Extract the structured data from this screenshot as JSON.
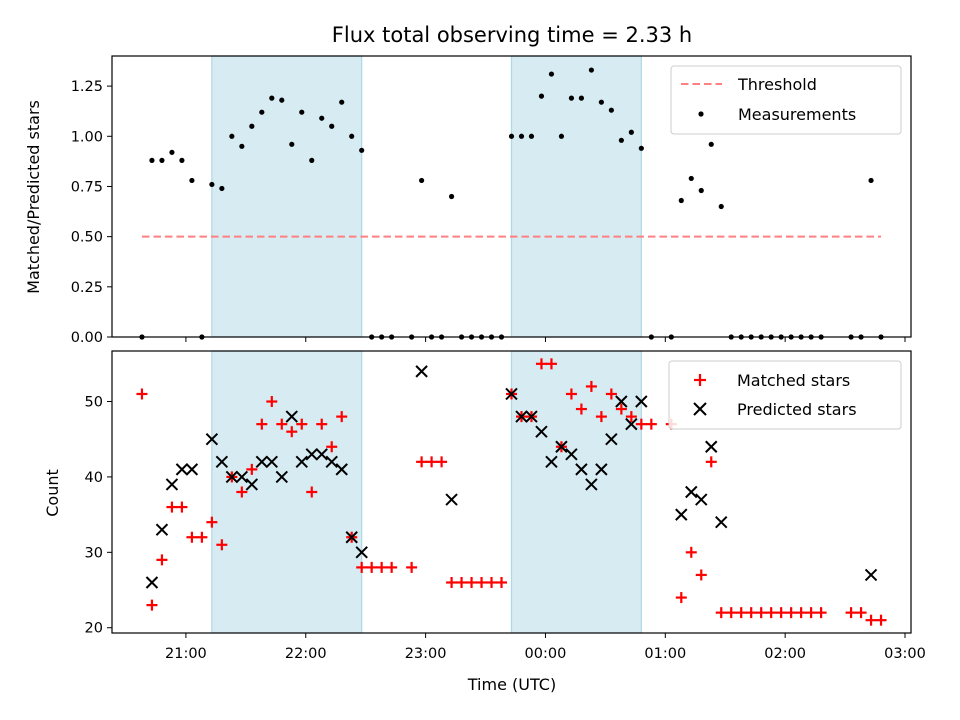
{
  "chart_data": [
    {
      "type": "scatter",
      "title": "Flux total observing time = 2.33 h",
      "ylabel": "Matched/Predicted stars",
      "xlabel": "",
      "xlim": [
        "20:23",
        "03:03"
      ],
      "ylim": [
        0,
        1.4
      ],
      "yticks": [
        "0.00",
        "0.25",
        "0.50",
        "0.75",
        "1.00",
        "1.25"
      ],
      "shaded_intervals": [
        [
          "21:13",
          "22:28"
        ],
        [
          "23:43",
          "00:48"
        ]
      ],
      "shade_color": "#add8e6",
      "threshold": {
        "name": "Threshold",
        "value": 0.5,
        "x_range": [
          "20:38",
          "02:48"
        ],
        "color": "#ff8080",
        "style": "dashed"
      },
      "legend_location": "upper right",
      "series": [
        {
          "name": "Measurements",
          "color": "#000000",
          "marker": "dot",
          "points": [
            [
              "20:38",
              0.0
            ],
            [
              "20:43",
              0.88
            ],
            [
              "20:48",
              0.88
            ],
            [
              "20:53",
              0.92
            ],
            [
              "20:58",
              0.88
            ],
            [
              "21:03",
              0.78
            ],
            [
              "21:08",
              0.0
            ],
            [
              "21:13",
              0.76
            ],
            [
              "21:18",
              0.74
            ],
            [
              "21:23",
              1.0
            ],
            [
              "21:28",
              0.95
            ],
            [
              "21:33",
              1.05
            ],
            [
              "21:38",
              1.12
            ],
            [
              "21:43",
              1.19
            ],
            [
              "21:48",
              1.18
            ],
            [
              "21:53",
              0.96
            ],
            [
              "21:58",
              1.12
            ],
            [
              "22:03",
              0.88
            ],
            [
              "22:08",
              1.09
            ],
            [
              "22:13",
              1.05
            ],
            [
              "22:18",
              1.17
            ],
            [
              "22:23",
              1.0
            ],
            [
              "22:28",
              0.93
            ],
            [
              "22:33",
              0.0
            ],
            [
              "22:38",
              0.0
            ],
            [
              "22:43",
              0.0
            ],
            [
              "22:53",
              0.0
            ],
            [
              "22:58",
              0.78
            ],
            [
              "23:03",
              0.0
            ],
            [
              "23:08",
              0.0
            ],
            [
              "23:13",
              0.7
            ],
            [
              "23:18",
              0.0
            ],
            [
              "23:23",
              0.0
            ],
            [
              "23:28",
              0.0
            ],
            [
              "23:33",
              0.0
            ],
            [
              "23:38",
              0.0
            ],
            [
              "23:43",
              1.0
            ],
            [
              "23:48",
              1.0
            ],
            [
              "23:53",
              1.0
            ],
            [
              "23:58",
              1.2
            ],
            [
              "00:03",
              1.31
            ],
            [
              "00:08",
              1.0
            ],
            [
              "00:13",
              1.19
            ],
            [
              "00:18",
              1.19
            ],
            [
              "00:23",
              1.33
            ],
            [
              "00:28",
              1.17
            ],
            [
              "00:33",
              1.13
            ],
            [
              "00:38",
              0.98
            ],
            [
              "00:43",
              1.02
            ],
            [
              "00:48",
              0.94
            ],
            [
              "00:53",
              0.0
            ],
            [
              "01:03",
              0.0
            ],
            [
              "01:08",
              0.68
            ],
            [
              "01:13",
              0.79
            ],
            [
              "01:18",
              0.73
            ],
            [
              "01:23",
              0.96
            ],
            [
              "01:28",
              0.65
            ],
            [
              "01:33",
              0.0
            ],
            [
              "01:38",
              0.0
            ],
            [
              "01:43",
              0.0
            ],
            [
              "01:48",
              0.0
            ],
            [
              "01:53",
              0.0
            ],
            [
              "01:58",
              0.0
            ],
            [
              "02:03",
              0.0
            ],
            [
              "02:08",
              0.0
            ],
            [
              "02:13",
              0.0
            ],
            [
              "02:18",
              0.0
            ],
            [
              "02:33",
              0.0
            ],
            [
              "02:38",
              0.0
            ],
            [
              "02:43",
              0.78
            ],
            [
              "02:48",
              0.0
            ]
          ]
        }
      ]
    },
    {
      "type": "scatter",
      "title": "",
      "xlabel": "Time (UTC)",
      "ylabel": "Count",
      "xlim": [
        "20:23",
        "03:03"
      ],
      "ylim": [
        19.3,
        56.7
      ],
      "xticks": [
        "21:00",
        "22:00",
        "23:00",
        "00:00",
        "01:00",
        "02:00",
        "03:00"
      ],
      "yticks": [
        "20",
        "30",
        "40",
        "50"
      ],
      "shaded_intervals": [
        [
          "21:13",
          "22:28"
        ],
        [
          "23:43",
          "00:48"
        ]
      ],
      "shade_color": "#add8e6",
      "legend_location": "upper right",
      "series": [
        {
          "name": "Matched stars",
          "color": "#ff0000",
          "marker": "plus",
          "points": [
            [
              "20:38",
              51
            ],
            [
              "20:43",
              23
            ],
            [
              "20:48",
              29
            ],
            [
              "20:53",
              36
            ],
            [
              "20:58",
              36
            ],
            [
              "21:03",
              32
            ],
            [
              "21:08",
              32
            ],
            [
              "21:13",
              34
            ],
            [
              "21:18",
              31
            ],
            [
              "21:23",
              40
            ],
            [
              "21:28",
              38
            ],
            [
              "21:33",
              41
            ],
            [
              "21:38",
              47
            ],
            [
              "21:43",
              50
            ],
            [
              "21:48",
              47
            ],
            [
              "21:53",
              46
            ],
            [
              "21:58",
              47
            ],
            [
              "22:03",
              38
            ],
            [
              "22:08",
              47
            ],
            [
              "22:13",
              44
            ],
            [
              "22:18",
              48
            ],
            [
              "22:23",
              32
            ],
            [
              "22:28",
              28
            ],
            [
              "22:33",
              28
            ],
            [
              "22:38",
              28
            ],
            [
              "22:43",
              28
            ],
            [
              "22:53",
              28
            ],
            [
              "22:58",
              42
            ],
            [
              "23:03",
              42
            ],
            [
              "23:08",
              42
            ],
            [
              "23:13",
              26
            ],
            [
              "23:18",
              26
            ],
            [
              "23:23",
              26
            ],
            [
              "23:28",
              26
            ],
            [
              "23:33",
              26
            ],
            [
              "23:38",
              26
            ],
            [
              "23:43",
              51
            ],
            [
              "23:48",
              48
            ],
            [
              "23:53",
              48
            ],
            [
              "23:58",
              55
            ],
            [
              "00:03",
              55
            ],
            [
              "00:08",
              44
            ],
            [
              "00:13",
              51
            ],
            [
              "00:18",
              49
            ],
            [
              "00:23",
              52
            ],
            [
              "00:28",
              48
            ],
            [
              "00:33",
              51
            ],
            [
              "00:38",
              49
            ],
            [
              "00:43",
              48
            ],
            [
              "00:48",
              47
            ],
            [
              "00:53",
              47
            ],
            [
              "01:03",
              47
            ],
            [
              "01:08",
              24
            ],
            [
              "01:13",
              30
            ],
            [
              "01:18",
              27
            ],
            [
              "01:23",
              42
            ],
            [
              "01:28",
              22
            ],
            [
              "01:33",
              22
            ],
            [
              "01:38",
              22
            ],
            [
              "01:43",
              22
            ],
            [
              "01:48",
              22
            ],
            [
              "01:53",
              22
            ],
            [
              "01:58",
              22
            ],
            [
              "02:03",
              22
            ],
            [
              "02:08",
              22
            ],
            [
              "02:13",
              22
            ],
            [
              "02:18",
              22
            ],
            [
              "02:33",
              22
            ],
            [
              "02:38",
              22
            ],
            [
              "02:43",
              21
            ],
            [
              "02:48",
              21
            ]
          ]
        },
        {
          "name": "Predicted stars",
          "color": "#000000",
          "marker": "x",
          "points": [
            [
              "20:43",
              26
            ],
            [
              "20:48",
              33
            ],
            [
              "20:53",
              39
            ],
            [
              "20:58",
              41
            ],
            [
              "21:03",
              41
            ],
            [
              "21:13",
              45
            ],
            [
              "21:18",
              42
            ],
            [
              "21:23",
              40
            ],
            [
              "21:28",
              40
            ],
            [
              "21:33",
              39
            ],
            [
              "21:38",
              42
            ],
            [
              "21:43",
              42
            ],
            [
              "21:48",
              40
            ],
            [
              "21:53",
              48
            ],
            [
              "21:58",
              42
            ],
            [
              "22:03",
              43
            ],
            [
              "22:08",
              43
            ],
            [
              "22:13",
              42
            ],
            [
              "22:18",
              41
            ],
            [
              "22:23",
              32
            ],
            [
              "22:28",
              30
            ],
            [
              "22:58",
              54
            ],
            [
              "23:13",
              37
            ],
            [
              "23:43",
              51
            ],
            [
              "23:48",
              48
            ],
            [
              "23:53",
              48
            ],
            [
              "23:58",
              46
            ],
            [
              "00:03",
              42
            ],
            [
              "00:08",
              44
            ],
            [
              "00:13",
              43
            ],
            [
              "00:18",
              41
            ],
            [
              "00:23",
              39
            ],
            [
              "00:28",
              41
            ],
            [
              "00:33",
              45
            ],
            [
              "00:38",
              50
            ],
            [
              "00:43",
              47
            ],
            [
              "00:48",
              50
            ],
            [
              "01:08",
              35
            ],
            [
              "01:13",
              38
            ],
            [
              "01:18",
              37
            ],
            [
              "01:23",
              44
            ],
            [
              "01:28",
              34
            ],
            [
              "02:43",
              27
            ]
          ]
        }
      ]
    }
  ]
}
